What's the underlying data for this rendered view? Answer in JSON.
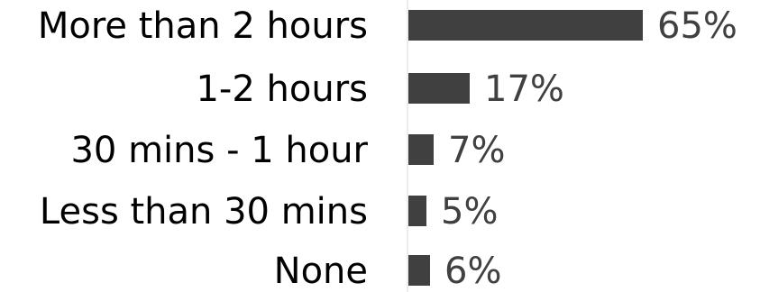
{
  "chart_data": {
    "type": "bar",
    "orientation": "horizontal",
    "categories": [
      "More than 2 hours",
      "1-2 hours",
      "30 mins - 1 hour",
      "Less than 30 mins",
      "None"
    ],
    "values": [
      65,
      17,
      7,
      5,
      6
    ],
    "value_labels": [
      "65%",
      "17%",
      "7%",
      "5%",
      "6%"
    ],
    "unit": "%",
    "xlim": [
      0,
      100
    ],
    "grid": false,
    "legend": "none",
    "colors": {
      "bar": "#404040",
      "axis": "#d9d9d9",
      "category_text": "#000000",
      "value_text": "#404040"
    }
  }
}
